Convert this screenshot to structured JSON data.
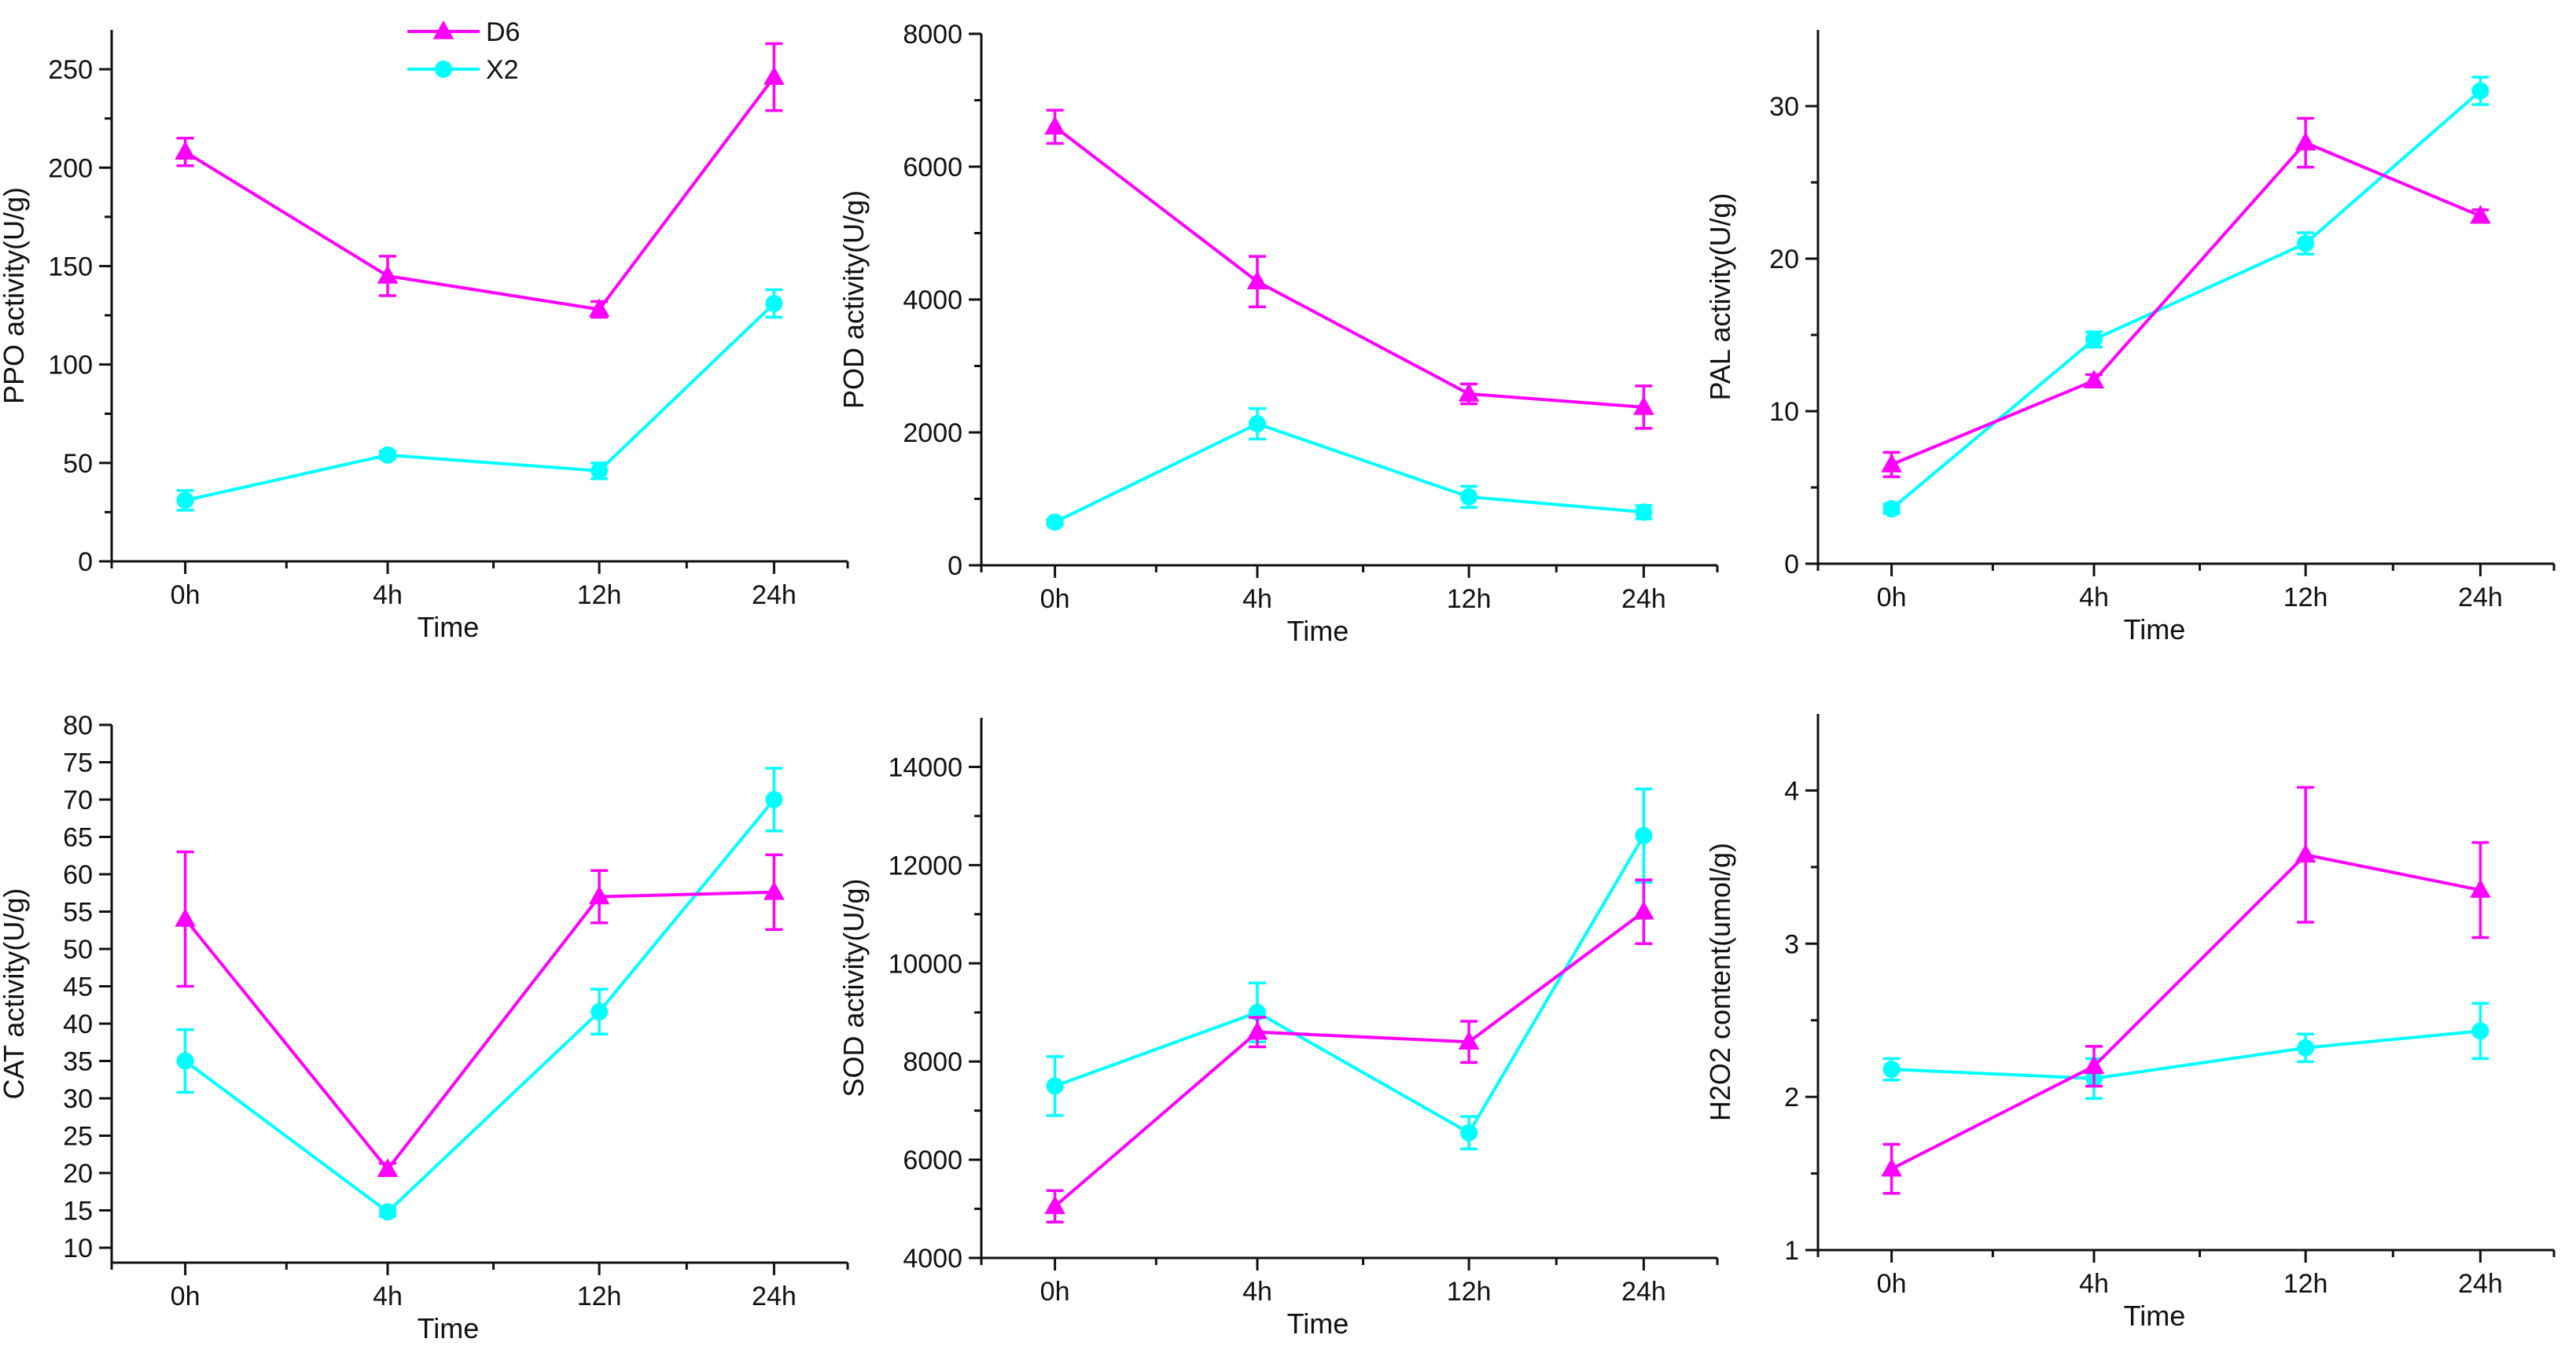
{
  "colors": {
    "D6": "#ff00ff",
    "X2": "#00ffff",
    "axis": "#111111"
  },
  "legend": {
    "entries": [
      {
        "name": "D6",
        "marker": "triangle",
        "color": "#ff00ff"
      },
      {
        "name": "X2",
        "marker": "circle",
        "color": "#00ffff"
      }
    ]
  },
  "chart_data": [
    {
      "type": "line",
      "xlabel": "Time",
      "ylabel": "PPO activity(U/g)",
      "categories": [
        "0h",
        "4h",
        "12h",
        "24h"
      ],
      "ylim": [
        0,
        270
      ],
      "yticks": [
        0,
        50,
        100,
        150,
        200,
        250
      ],
      "series": [
        {
          "name": "D6",
          "values": [
            208,
            145,
            128,
            246
          ],
          "errors": [
            7,
            10,
            4,
            17
          ]
        },
        {
          "name": "X2",
          "values": [
            31,
            54,
            46,
            131
          ],
          "errors": [
            5,
            2,
            4,
            7
          ]
        }
      ]
    },
    {
      "type": "line",
      "xlabel": "Time",
      "ylabel": "POD activity(U/g)",
      "categories": [
        "0h",
        "4h",
        "12h",
        "24h"
      ],
      "ylim": [
        0,
        8000
      ],
      "yticks": [
        0,
        2000,
        4000,
        6000,
        8000
      ],
      "series": [
        {
          "name": "D6",
          "values": [
            6600,
            4270,
            2580,
            2380
          ],
          "errors": [
            250,
            380,
            150,
            320
          ]
        },
        {
          "name": "X2",
          "values": [
            650,
            2130,
            1030,
            800
          ],
          "errors": [
            40,
            230,
            160,
            100
          ]
        }
      ]
    },
    {
      "type": "line",
      "xlabel": "Time",
      "ylabel": "PAL activity(U/g)",
      "categories": [
        "0h",
        "4h",
        "12h",
        "24h"
      ],
      "ylim": [
        0,
        35
      ],
      "yticks": [
        0,
        10,
        20,
        30
      ],
      "series": [
        {
          "name": "D6",
          "values": [
            6.5,
            12,
            27.6,
            22.8
          ],
          "errors": [
            0.8,
            0.4,
            1.6,
            0.4
          ]
        },
        {
          "name": "X2",
          "values": [
            3.6,
            14.7,
            21.0,
            31.0
          ],
          "errors": [
            0.3,
            0.5,
            0.7,
            0.9
          ]
        }
      ]
    },
    {
      "type": "line",
      "xlabel": "Time",
      "ylabel": "CAT activity(U/g)",
      "categories": [
        "0h",
        "4h",
        "12h",
        "24h"
      ],
      "ylim": [
        8,
        80
      ],
      "yticks": [
        10,
        15,
        20,
        25,
        30,
        35,
        40,
        45,
        50,
        55,
        60,
        65,
        70,
        75,
        80
      ],
      "series": [
        {
          "name": "D6",
          "values": [
            54,
            20.5,
            57,
            57.6
          ],
          "errors": [
            9,
            0.8,
            3.5,
            5
          ]
        },
        {
          "name": "X2",
          "values": [
            35,
            14.8,
            41.6,
            70
          ],
          "errors": [
            4.2,
            0.6,
            3,
            4.2
          ]
        }
      ]
    },
    {
      "type": "line",
      "xlabel": "Time",
      "ylabel": "SOD activity(U/g)",
      "categories": [
        "0h",
        "4h",
        "12h",
        "24h"
      ],
      "ylim": [
        4000,
        15000
      ],
      "yticks": [
        4000,
        6000,
        8000,
        10000,
        12000,
        14000
      ],
      "series": [
        {
          "name": "D6",
          "values": [
            5050,
            8600,
            8400,
            11050
          ],
          "errors": [
            320,
            300,
            420,
            650
          ]
        },
        {
          "name": "X2",
          "values": [
            7500,
            9000,
            6550,
            12600
          ],
          "errors": [
            600,
            600,
            330,
            950
          ]
        }
      ]
    },
    {
      "type": "line",
      "xlabel": "Time",
      "ylabel": "H2O2 content(umol/g)",
      "categories": [
        "0h",
        "4h",
        "12h",
        "24h"
      ],
      "ylim": [
        1,
        4.5
      ],
      "yticks": [
        1,
        2,
        3,
        4
      ],
      "series": [
        {
          "name": "D6",
          "values": [
            1.53,
            2.2,
            3.58,
            3.35
          ],
          "errors": [
            0.16,
            0.13,
            0.44,
            0.31
          ]
        },
        {
          "name": "X2",
          "values": [
            2.18,
            2.12,
            2.32,
            2.43
          ],
          "errors": [
            0.07,
            0.13,
            0.09,
            0.18
          ]
        }
      ]
    }
  ]
}
